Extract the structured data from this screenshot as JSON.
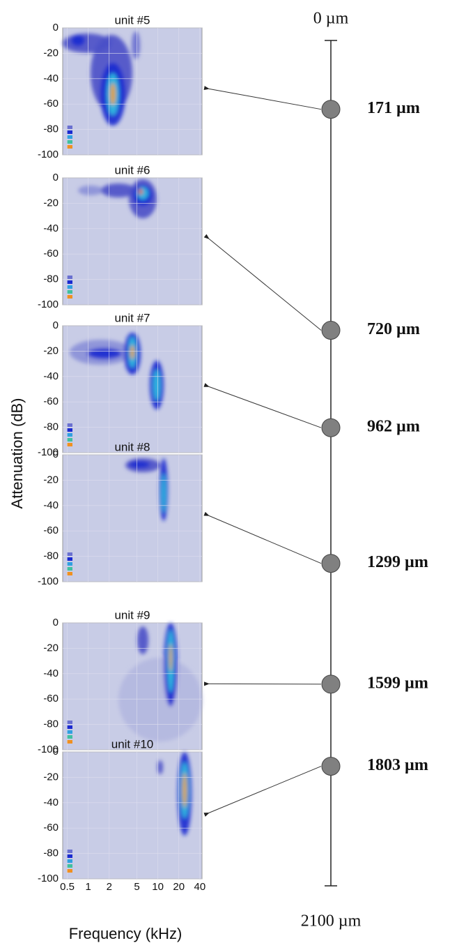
{
  "chart_data": {
    "type": "heatmap",
    "y_label": "Attenuation (dB)",
    "x_label": "Frequency (kHz)",
    "log_x": true,
    "xlim": [
      0.43,
      43
    ],
    "xticks": [
      0.5,
      1,
      2,
      5,
      10,
      20,
      40
    ],
    "ylim": [
      -100,
      0
    ],
    "yticks": [
      0,
      -20,
      -40,
      -60,
      -80,
      -100
    ],
    "panels": [
      {
        "title": "unit #5"
      },
      {
        "title": "unit #6"
      },
      {
        "title": "unit #7"
      },
      {
        "title": "unit #8"
      },
      {
        "title": "unit #9"
      },
      {
        "title": "unit #10"
      }
    ],
    "depth": {
      "ylim": [
        0,
        2100
      ],
      "ends": [
        {
          "value": 0,
          "label": "0 µm"
        },
        {
          "value": 2100,
          "label": "2100 µm"
        }
      ],
      "units": [
        {
          "value": 171,
          "label": "171 µm"
        },
        {
          "value": 720,
          "label": "720 µm"
        },
        {
          "value": 962,
          "label": "962 µm"
        },
        {
          "value": 1299,
          "label": "1299 µm"
        },
        {
          "value": 1599,
          "label": "1599 µm"
        },
        {
          "value": 1803,
          "label": "1803 µm"
        }
      ]
    }
  }
}
